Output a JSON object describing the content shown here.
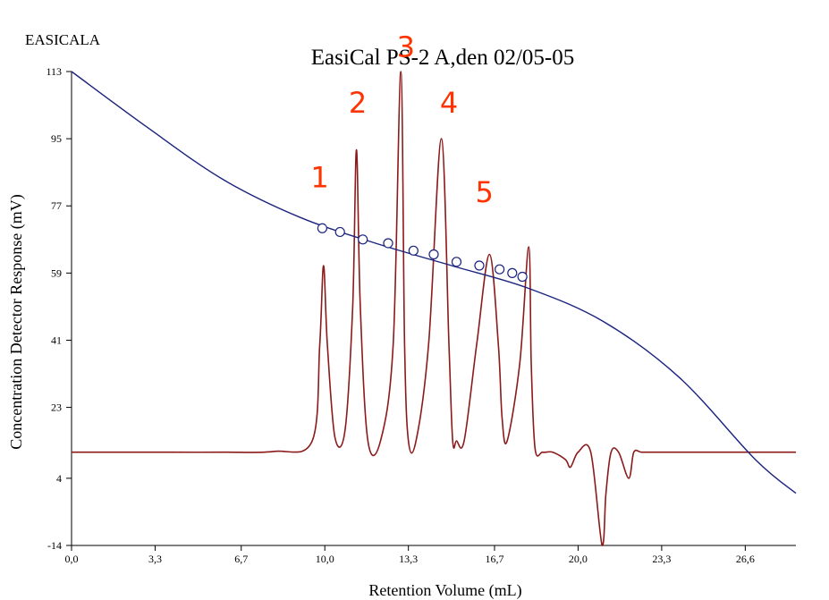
{
  "header": {
    "label": "EASICALA"
  },
  "chart_data": {
    "type": "line",
    "title": "EasiCal PS-2 A,den 02/05-05",
    "xlabel": "Retention Volume (mL)",
    "ylabel": "Concentration Detector Response (mV)",
    "xlim": [
      0,
      28.6
    ],
    "ylim": [
      -14,
      113
    ],
    "x_ticks": [
      "0,0",
      "3,3",
      "6,7",
      "10,0",
      "13,3",
      "16,7",
      "20,0",
      "23,3",
      "26,6"
    ],
    "x_tick_values": [
      0,
      3.3,
      6.7,
      10.0,
      13.3,
      16.7,
      20.0,
      23.3,
      26.6
    ],
    "y_ticks": [
      "113",
      "95",
      "77",
      "59",
      "41",
      "23",
      "4",
      "-14"
    ],
    "y_tick_values": [
      113,
      95,
      77,
      59,
      41,
      23,
      4,
      -14
    ],
    "grid": false,
    "colors": {
      "chromatogram": "#8b1a1a",
      "calibration": "#1a237e",
      "peak_label": "#ff3300",
      "axis": "#000000"
    },
    "series": [
      {
        "x": [
          0,
          2,
          4,
          6,
          8,
          9.5,
          9.8,
          9.95,
          10.1,
          10.4,
          10.8,
          11.1,
          11.25,
          11.4,
          11.7,
          12.2,
          12.7,
          13.0,
          13.15,
          13.3,
          13.6,
          14.1,
          14.6,
          14.9,
          15.05,
          15.2,
          15.5,
          16.0,
          16.5,
          16.85,
          17.0,
          17.2,
          17.7,
          18.05,
          18.15,
          18.3,
          18.6,
          19.0,
          19.5,
          19.7,
          20.0,
          20.5,
          20.95,
          21.1,
          21.3,
          21.6,
          22.0,
          22.2,
          22.5,
          23.0,
          25.0,
          28.6
        ],
        "y": [
          11,
          11,
          11,
          11,
          11.2,
          14,
          40,
          61,
          40,
          15,
          17,
          50,
          92,
          50,
          14,
          14,
          40,
          113,
          40,
          14,
          14,
          40,
          95,
          40,
          14,
          14,
          14,
          40,
          64,
          40,
          20,
          14,
          35,
          66,
          35,
          12,
          11,
          11,
          9,
          7,
          11,
          11,
          -14,
          0,
          11,
          11,
          4,
          11,
          11,
          11,
          11,
          11
        ]
      },
      {
        "x": [
          0,
          3,
          6,
          9,
          12,
          15,
          18,
          21,
          24,
          27,
          28.6
        ],
        "y": [
          113,
          98,
          84,
          74,
          67,
          61,
          55,
          46,
          31,
          9,
          0
        ]
      }
    ],
    "calibration_points": {
      "x": [
        9.9,
        10.6,
        11.5,
        12.5,
        13.5,
        14.3,
        15.2,
        16.1,
        16.9,
        17.4,
        17.8
      ],
      "y": [
        71,
        70,
        68,
        67,
        65,
        64,
        62,
        61,
        60,
        59,
        58
      ]
    },
    "annotations": [
      {
        "text": "1",
        "x": 9.8,
        "y": 82
      },
      {
        "text": "2",
        "x": 11.3,
        "y": 102
      },
      {
        "text": "3",
        "x": 13.2,
        "y": 117
      },
      {
        "text": "4",
        "x": 14.9,
        "y": 102
      },
      {
        "text": "5",
        "x": 16.3,
        "y": 78
      }
    ]
  }
}
